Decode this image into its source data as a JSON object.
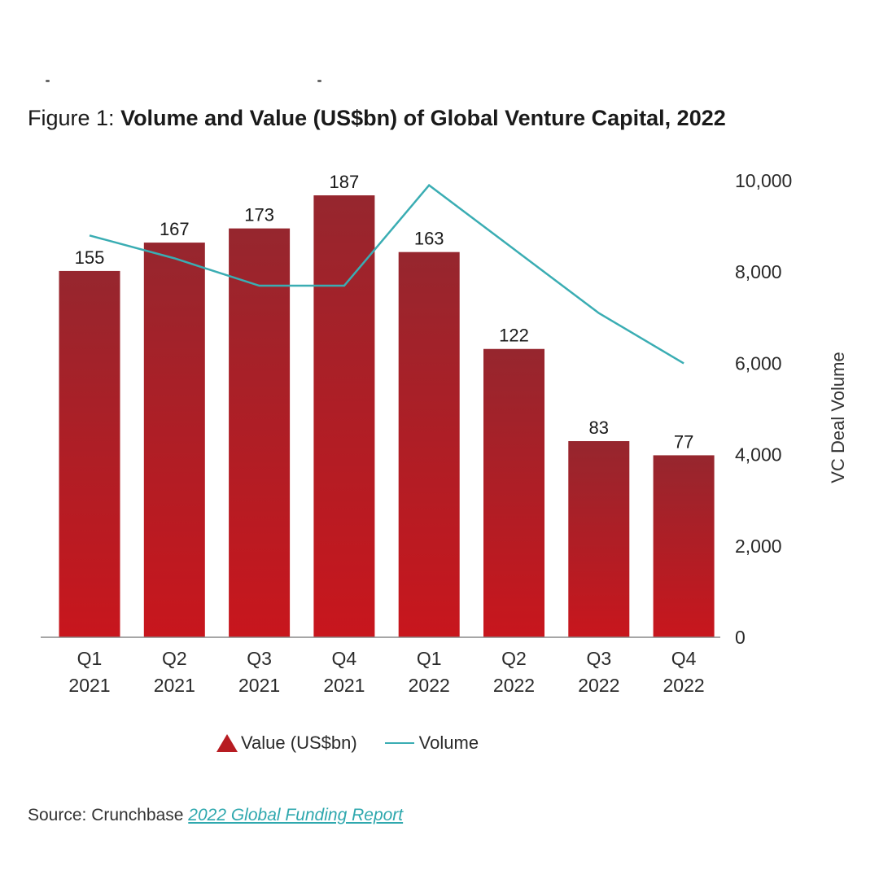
{
  "figure": {
    "prefix": "Figure 1: ",
    "title": "Volume and Value (US$bn) of Global Venture Capital, 2022"
  },
  "chart_data": {
    "type": "bar",
    "categories": [
      [
        "Q1",
        "2021"
      ],
      [
        "Q2",
        "2021"
      ],
      [
        "Q3",
        "2021"
      ],
      [
        "Q4",
        "2021"
      ],
      [
        "Q1",
        "2022"
      ],
      [
        "Q2",
        "2022"
      ],
      [
        "Q3",
        "2022"
      ],
      [
        "Q4",
        "2022"
      ]
    ],
    "series": [
      {
        "name": "Value (US$bn)",
        "type": "bar",
        "axis": "left",
        "values": [
          155,
          167,
          173,
          187,
          163,
          122,
          83,
          77
        ],
        "color_top": "#96262e",
        "color_bottom": "#c8161d"
      },
      {
        "name": "Volume",
        "type": "line",
        "axis": "right",
        "values": [
          8800,
          8300,
          7700,
          7700,
          9900,
          8500,
          7100,
          6000
        ],
        "color": "#3aadb3"
      }
    ],
    "left_axis": {
      "range": [
        0,
        195
      ],
      "visible": false
    },
    "right_axis": {
      "label": "VC Deal Volume",
      "range": [
        0,
        10000
      ],
      "ticks": [
        "0",
        "2,000",
        "4,000",
        "6,000",
        "8,000",
        "10,000"
      ]
    },
    "grid": false,
    "legend": {
      "placement": "bottom"
    }
  },
  "source": {
    "prefix": "Source: Crunchbase ",
    "link_text": "2022 Global Funding Report"
  }
}
